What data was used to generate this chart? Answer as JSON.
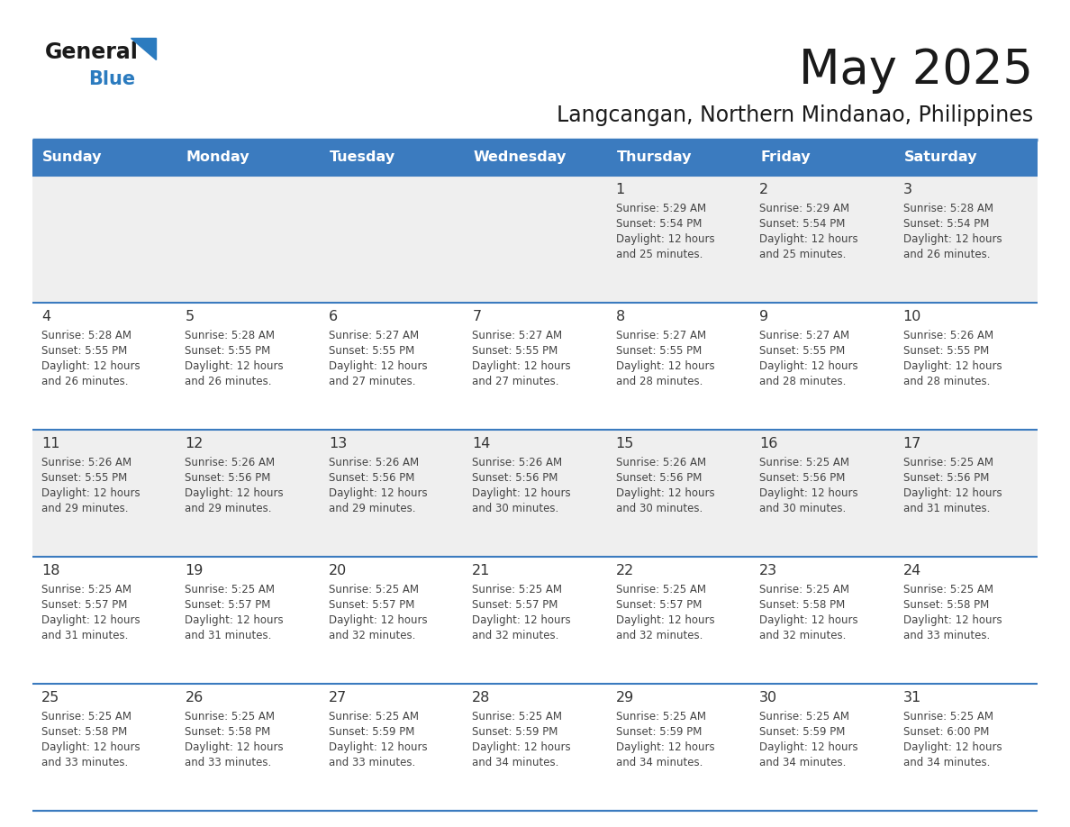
{
  "title": "May 2025",
  "subtitle": "Langcangan, Northern Mindanao, Philippines",
  "days_of_week": [
    "Sunday",
    "Monday",
    "Tuesday",
    "Wednesday",
    "Thursday",
    "Friday",
    "Saturday"
  ],
  "header_bg": "#3B7BBF",
  "header_text": "#FFFFFF",
  "row_bg_odd": "#EFEFEF",
  "row_bg_even": "#FFFFFF",
  "day_number_color": "#333333",
  "info_text_color": "#444444",
  "title_color": "#1a1a1a",
  "subtitle_color": "#1a1a1a",
  "separator_color": "#3B7BBF",
  "logo_black": "#1a1a1a",
  "logo_blue": "#2B7BBF",
  "calendar_data": [
    [
      {
        "day": "",
        "sunrise": "",
        "sunset": "",
        "daylight": ""
      },
      {
        "day": "",
        "sunrise": "",
        "sunset": "",
        "daylight": ""
      },
      {
        "day": "",
        "sunrise": "",
        "sunset": "",
        "daylight": ""
      },
      {
        "day": "",
        "sunrise": "",
        "sunset": "",
        "daylight": ""
      },
      {
        "day": "1",
        "sunrise": "5:29 AM",
        "sunset": "5:54 PM",
        "daylight": "12 hours and 25 minutes."
      },
      {
        "day": "2",
        "sunrise": "5:29 AM",
        "sunset": "5:54 PM",
        "daylight": "12 hours and 25 minutes."
      },
      {
        "day": "3",
        "sunrise": "5:28 AM",
        "sunset": "5:54 PM",
        "daylight": "12 hours and 26 minutes."
      }
    ],
    [
      {
        "day": "4",
        "sunrise": "5:28 AM",
        "sunset": "5:55 PM",
        "daylight": "12 hours and 26 minutes."
      },
      {
        "day": "5",
        "sunrise": "5:28 AM",
        "sunset": "5:55 PM",
        "daylight": "12 hours and 26 minutes."
      },
      {
        "day": "6",
        "sunrise": "5:27 AM",
        "sunset": "5:55 PM",
        "daylight": "12 hours and 27 minutes."
      },
      {
        "day": "7",
        "sunrise": "5:27 AM",
        "sunset": "5:55 PM",
        "daylight": "12 hours and 27 minutes."
      },
      {
        "day": "8",
        "sunrise": "5:27 AM",
        "sunset": "5:55 PM",
        "daylight": "12 hours and 28 minutes."
      },
      {
        "day": "9",
        "sunrise": "5:27 AM",
        "sunset": "5:55 PM",
        "daylight": "12 hours and 28 minutes."
      },
      {
        "day": "10",
        "sunrise": "5:26 AM",
        "sunset": "5:55 PM",
        "daylight": "12 hours and 28 minutes."
      }
    ],
    [
      {
        "day": "11",
        "sunrise": "5:26 AM",
        "sunset": "5:55 PM",
        "daylight": "12 hours and 29 minutes."
      },
      {
        "day": "12",
        "sunrise": "5:26 AM",
        "sunset": "5:56 PM",
        "daylight": "12 hours and 29 minutes."
      },
      {
        "day": "13",
        "sunrise": "5:26 AM",
        "sunset": "5:56 PM",
        "daylight": "12 hours and 29 minutes."
      },
      {
        "day": "14",
        "sunrise": "5:26 AM",
        "sunset": "5:56 PM",
        "daylight": "12 hours and 30 minutes."
      },
      {
        "day": "15",
        "sunrise": "5:26 AM",
        "sunset": "5:56 PM",
        "daylight": "12 hours and 30 minutes."
      },
      {
        "day": "16",
        "sunrise": "5:25 AM",
        "sunset": "5:56 PM",
        "daylight": "12 hours and 30 minutes."
      },
      {
        "day": "17",
        "sunrise": "5:25 AM",
        "sunset": "5:56 PM",
        "daylight": "12 hours and 31 minutes."
      }
    ],
    [
      {
        "day": "18",
        "sunrise": "5:25 AM",
        "sunset": "5:57 PM",
        "daylight": "12 hours and 31 minutes."
      },
      {
        "day": "19",
        "sunrise": "5:25 AM",
        "sunset": "5:57 PM",
        "daylight": "12 hours and 31 minutes."
      },
      {
        "day": "20",
        "sunrise": "5:25 AM",
        "sunset": "5:57 PM",
        "daylight": "12 hours and 32 minutes."
      },
      {
        "day": "21",
        "sunrise": "5:25 AM",
        "sunset": "5:57 PM",
        "daylight": "12 hours and 32 minutes."
      },
      {
        "day": "22",
        "sunrise": "5:25 AM",
        "sunset": "5:57 PM",
        "daylight": "12 hours and 32 minutes."
      },
      {
        "day": "23",
        "sunrise": "5:25 AM",
        "sunset": "5:58 PM",
        "daylight": "12 hours and 32 minutes."
      },
      {
        "day": "24",
        "sunrise": "5:25 AM",
        "sunset": "5:58 PM",
        "daylight": "12 hours and 33 minutes."
      }
    ],
    [
      {
        "day": "25",
        "sunrise": "5:25 AM",
        "sunset": "5:58 PM",
        "daylight": "12 hours and 33 minutes."
      },
      {
        "day": "26",
        "sunrise": "5:25 AM",
        "sunset": "5:58 PM",
        "daylight": "12 hours and 33 minutes."
      },
      {
        "day": "27",
        "sunrise": "5:25 AM",
        "sunset": "5:59 PM",
        "daylight": "12 hours and 33 minutes."
      },
      {
        "day": "28",
        "sunrise": "5:25 AM",
        "sunset": "5:59 PM",
        "daylight": "12 hours and 34 minutes."
      },
      {
        "day": "29",
        "sunrise": "5:25 AM",
        "sunset": "5:59 PM",
        "daylight": "12 hours and 34 minutes."
      },
      {
        "day": "30",
        "sunrise": "5:25 AM",
        "sunset": "5:59 PM",
        "daylight": "12 hours and 34 minutes."
      },
      {
        "day": "31",
        "sunrise": "5:25 AM",
        "sunset": "6:00 PM",
        "daylight": "12 hours and 34 minutes."
      }
    ]
  ],
  "row_bgs": [
    "#EFEFEF",
    "#FFFFFF",
    "#EFEFEF",
    "#FFFFFF",
    "#FFFFFF"
  ]
}
